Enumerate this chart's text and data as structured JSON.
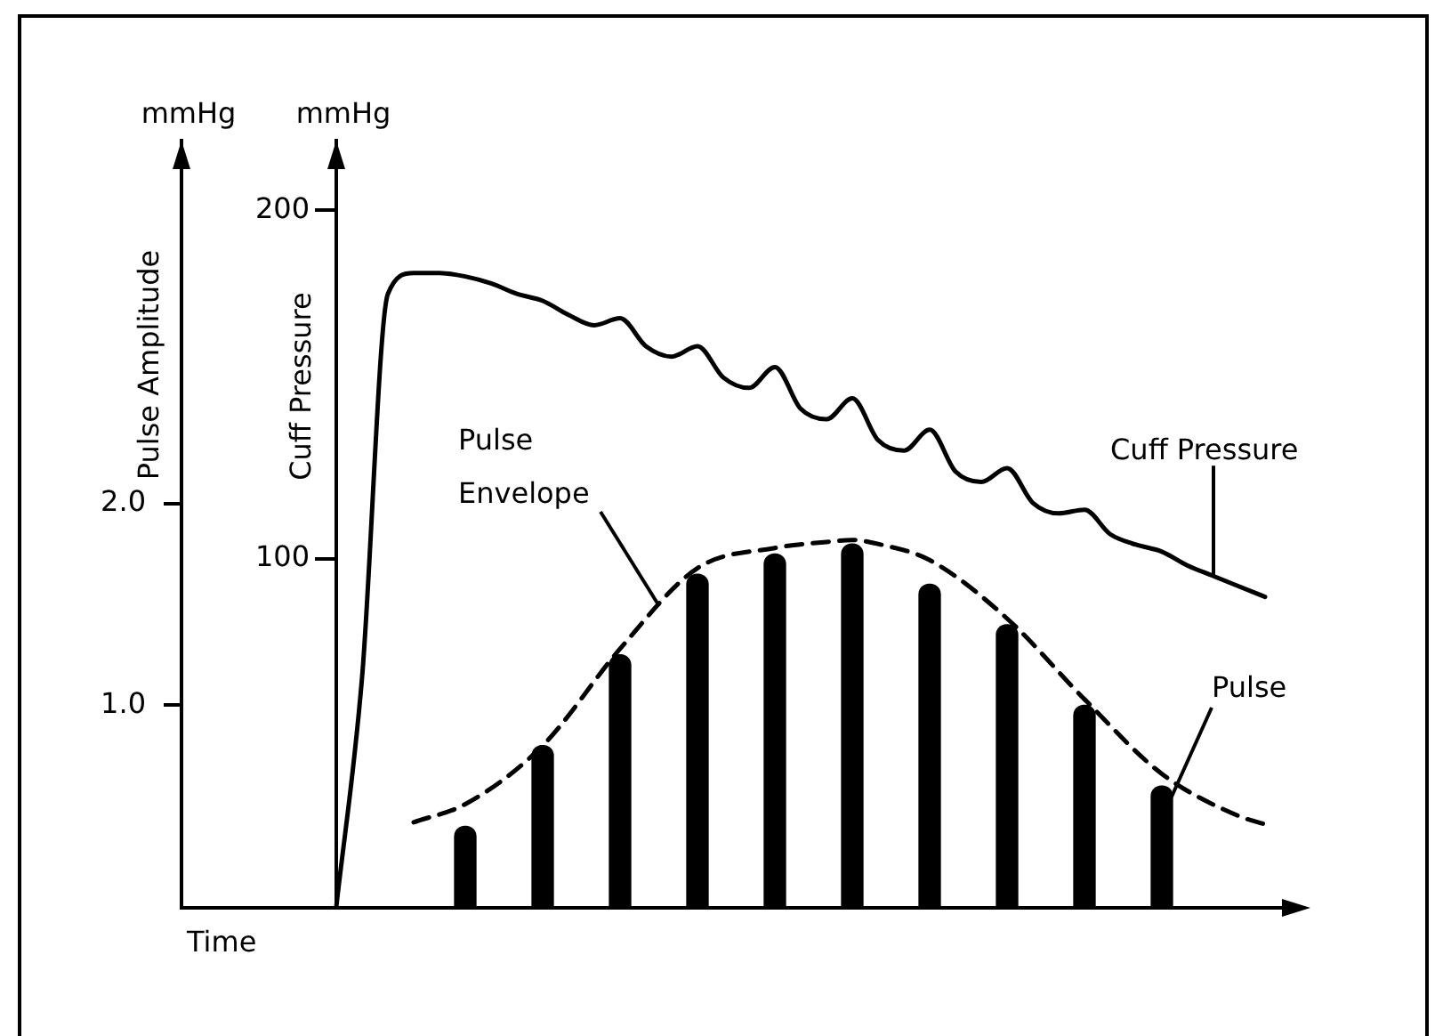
{
  "chart_data": {
    "type": "line",
    "xlabel": "Time",
    "ylabel": "Pulse Amplitude",
    "y2label": "Cuff Pressure",
    "annotations": [
      "mmHg",
      "mmHg"
    ],
    "categories": [
      null,
      null,
      null,
      null,
      null,
      null,
      null,
      null,
      null,
      null,
      null,
      null,
      null,
      null,
      null,
      null,
      null,
      null,
      null,
      null,
      null,
      null,
      null,
      null,
      null,
      null,
      null,
      null,
      null,
      null,
      null,
      null,
      null,
      null,
      null,
      null,
      null,
      null,
      null,
      null,
      null,
      null,
      null,
      null
    ],
    "ylim": [
      0,
      3.8
    ],
    "yticks": [
      {
        "value": 1,
        "label": "1.0"
      },
      {
        "value": 2,
        "label": "2.0"
      }
    ],
    "y2lim": [
      0,
      220
    ],
    "y2ticks": [
      100,
      200
    ],
    "grid": false,
    "legend": false,
    "tick_labels": "y",
    "marker": "none",
    "series": [
      {
        "name": "Cuff Pressure",
        "axis": "y2",
        "color": "#000000",
        "line_style": "solid",
        "values": [
          null,
          null,
          null,
          null,
          null,
          null,
          0,
          66,
          176,
          182,
          182,
          181,
          179,
          176,
          174,
          170,
          167,
          169,
          161,
          158,
          161,
          152,
          149,
          155,
          143,
          140,
          146,
          134,
          131,
          137,
          125,
          122,
          126,
          116,
          113,
          114,
          107,
          104,
          102,
          98,
          95,
          92,
          89,
          null
        ]
      },
      {
        "name": "Pulse Envelope",
        "color": "#000000",
        "line_style": "dashed",
        "values": [
          null,
          null,
          null,
          null,
          null,
          null,
          null,
          null,
          null,
          0.42,
          null,
          0.51,
          null,
          null,
          0.8,
          null,
          null,
          1.28,
          null,
          null,
          1.68,
          null,
          null,
          1.78,
          null,
          1.81,
          1.82,
          1.8,
          null,
          1.72,
          null,
          null,
          1.43,
          null,
          null,
          1.03,
          null,
          null,
          0.66,
          null,
          null,
          0.45,
          0.41,
          null
        ]
      },
      {
        "name": "Pulse",
        "type": "bar",
        "color": "#000000",
        "values": [
          null,
          null,
          null,
          null,
          null,
          null,
          null,
          null,
          null,
          null,
          null,
          0.4,
          null,
          null,
          0.8,
          null,
          null,
          1.25,
          null,
          null,
          1.65,
          null,
          null,
          1.75,
          null,
          null,
          1.8,
          null,
          null,
          1.6,
          null,
          null,
          1.4,
          null,
          null,
          1.0,
          null,
          null,
          0.6,
          null,
          null,
          null,
          null,
          null
        ]
      }
    ]
  }
}
